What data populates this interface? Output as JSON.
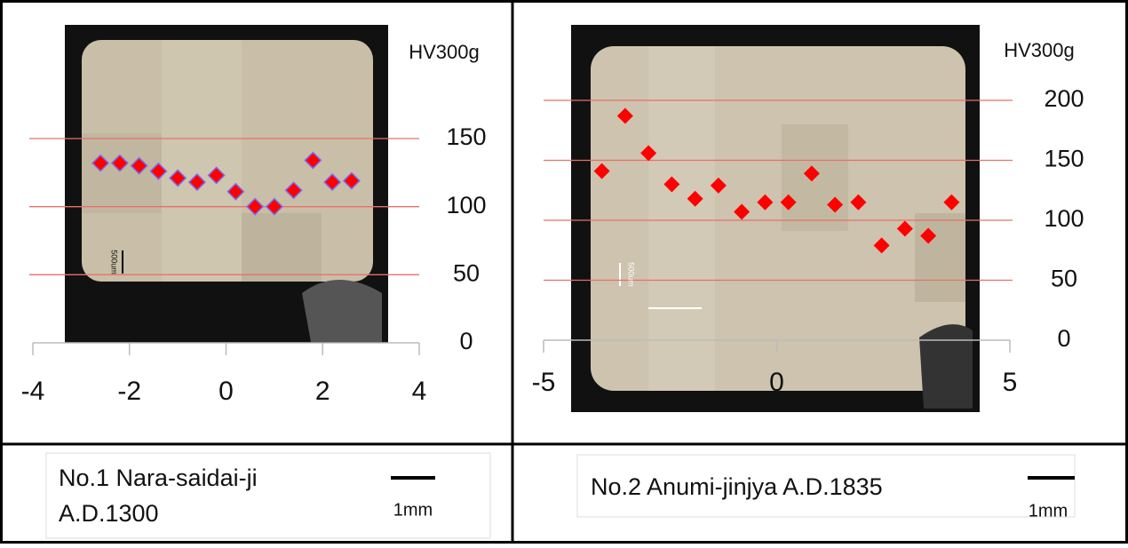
{
  "chart_data": [
    {
      "type": "scatter",
      "y_label": "HV300g",
      "x": [
        -2.6,
        -2.2,
        -1.8,
        -1.4,
        -1.0,
        -0.6,
        -0.2,
        0.2,
        0.6,
        1.0,
        1.4,
        1.8,
        2.2,
        2.6
      ],
      "values": [
        132,
        132,
        130,
        126,
        121,
        118,
        123,
        111,
        100,
        100,
        112,
        134,
        118,
        119
      ],
      "color": "#ff0000",
      "xlim": [
        -4,
        4
      ],
      "xticks": [
        -4,
        -2,
        0,
        2,
        4
      ],
      "ylim": [
        0,
        150
      ],
      "yticks": [
        0,
        50,
        100,
        150
      ],
      "grid": true,
      "caption": [
        "No.1 Nara-saidai-ji",
        "A.D.1300"
      ],
      "scale_label": "1mm",
      "inset_scale_label": "500um"
    },
    {
      "type": "scatter",
      "y_label": "HV300g",
      "x": [
        -3.75,
        -3.25,
        -2.75,
        -2.25,
        -1.75,
        -1.25,
        -0.75,
        -0.25,
        0.25,
        0.75,
        1.25,
        1.75,
        2.25,
        2.75,
        3.25,
        3.75
      ],
      "values": [
        141,
        187,
        156,
        130,
        118,
        129,
        107,
        115,
        115,
        139,
        113,
        115,
        79,
        93,
        87,
        115
      ],
      "color": "#ff0000",
      "xlim": [
        -5,
        5
      ],
      "xticks": [
        -5,
        0,
        5
      ],
      "ylim": [
        0,
        200
      ],
      "yticks": [
        0,
        50,
        100,
        150,
        200
      ],
      "grid": true,
      "caption": [
        "No.2 Anumi-jinjya A.D.1835"
      ],
      "scale_label": "1mm",
      "inset_scale_label": "500um"
    }
  ]
}
